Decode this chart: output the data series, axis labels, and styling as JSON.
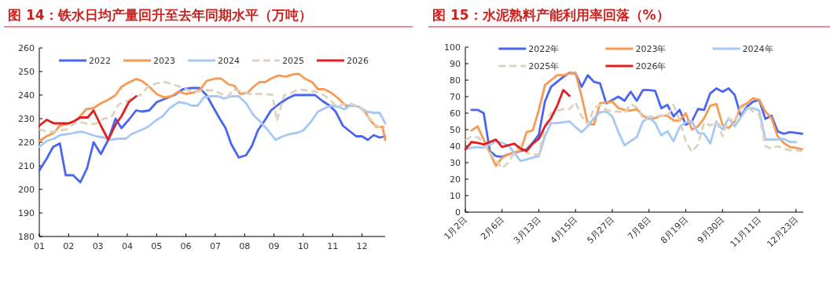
{
  "chart_data": [
    {
      "type": "line",
      "title": "图 14：铁水日均产量回升至去年同期水平（万吨）",
      "xlim": [
        1,
        12.79
      ],
      "ylim": [
        180,
        260
      ],
      "xticks": [
        {
          "value": 1,
          "label": "01"
        },
        {
          "value": 2,
          "label": "02"
        },
        {
          "value": 3,
          "label": "03"
        },
        {
          "value": 4,
          "label": "04"
        },
        {
          "value": 5,
          "label": "05"
        },
        {
          "value": 6,
          "label": "06"
        },
        {
          "value": 7,
          "label": "07"
        },
        {
          "value": 8,
          "label": "08"
        },
        {
          "value": 9,
          "label": "09"
        },
        {
          "value": 10,
          "label": "10"
        },
        {
          "value": 11,
          "label": "11"
        },
        {
          "value": 12,
          "label": "12"
        }
      ],
      "yticks": [
        180,
        190,
        200,
        210,
        220,
        230,
        240,
        250,
        260
      ],
      "grid": false,
      "legend": "top",
      "marker": "none",
      "series": [
        {
          "name": "2022",
          "color": "#4a66f0",
          "x": [
            1.0,
            1.25,
            1.47,
            1.7,
            1.9,
            2.15,
            2.4,
            2.63,
            2.85,
            3.1,
            3.35,
            3.6,
            3.8,
            4.05,
            4.3,
            4.5,
            4.75,
            5.0,
            5.3,
            5.6,
            5.9,
            6.2,
            6.45,
            6.7,
            6.9,
            7.15,
            7.35,
            7.55,
            7.8,
            8.05,
            8.25,
            8.45,
            8.7,
            8.9,
            9.15,
            9.45,
            9.7,
            9.95,
            10.2,
            10.4,
            10.65,
            10.9,
            11.1,
            11.35,
            11.55,
            11.8,
            12.0,
            12.2,
            12.4,
            12.6,
            12.79
          ],
          "values": [
            208,
            213,
            218,
            219.5,
            206,
            206,
            203,
            209,
            220,
            215,
            221,
            230,
            226,
            229.5,
            233.5,
            233,
            233.5,
            237,
            238.5,
            240,
            242.5,
            243,
            243,
            240,
            235.5,
            230,
            226,
            219,
            213.5,
            214.5,
            218.5,
            225,
            229.5,
            233.5,
            236,
            238.5,
            240,
            240,
            240,
            240,
            237.5,
            235.5,
            233,
            227,
            225,
            222.5,
            222.5,
            221,
            223,
            222,
            222.5
          ]
        },
        {
          "name": "2023",
          "color": "#f79a55",
          "x": [
            1.0,
            1.25,
            1.5,
            1.7,
            1.9,
            2.15,
            2.35,
            2.6,
            2.85,
            3.1,
            3.35,
            3.6,
            3.8,
            4.0,
            4.3,
            4.5,
            4.75,
            5.0,
            5.25,
            5.5,
            5.75,
            6.0,
            6.25,
            6.5,
            6.7,
            7.0,
            7.2,
            7.45,
            7.65,
            7.85,
            8.1,
            8.3,
            8.5,
            8.7,
            8.9,
            9.15,
            9.4,
            9.65,
            9.85,
            10.05,
            10.3,
            10.5,
            10.7,
            10.95,
            11.2,
            11.45,
            11.7,
            11.9,
            12.1,
            12.3,
            12.5,
            12.7,
            12.79
          ],
          "values": [
            220.5,
            222.5,
            224,
            227,
            227.5,
            228.5,
            230.5,
            234,
            234.5,
            236.5,
            238,
            240,
            243.5,
            245,
            246.8,
            246,
            243.5,
            240.5,
            239,
            239.5,
            241.5,
            240.5,
            241,
            242.5,
            246,
            247,
            247,
            244.5,
            244,
            240.5,
            241,
            243.5,
            245.5,
            245.5,
            247,
            248.3,
            247.8,
            248.8,
            249,
            247,
            245.5,
            242.5,
            242.5,
            241,
            238.5,
            235.5,
            235.5,
            235,
            233,
            229,
            226.5,
            226.5,
            221
          ]
        },
        {
          "name": "2024",
          "color": "#a6c8f5",
          "x": [
            1.0,
            1.25,
            1.5,
            1.7,
            2.0,
            2.2,
            2.45,
            2.7,
            2.95,
            3.2,
            3.4,
            3.7,
            3.95,
            4.15,
            4.45,
            4.7,
            4.95,
            5.2,
            5.45,
            5.75,
            6.0,
            6.2,
            6.4,
            6.6,
            6.85,
            7.1,
            7.3,
            7.55,
            7.8,
            8.05,
            8.3,
            8.55,
            8.8,
            9.05,
            9.3,
            9.55,
            9.8,
            10.0,
            10.25,
            10.5,
            10.75,
            10.95,
            11.2,
            11.4,
            11.65,
            11.9,
            12.15,
            12.4,
            12.6,
            12.75,
            12.79
          ],
          "values": [
            218,
            220.5,
            221.5,
            223,
            223.5,
            224,
            224.5,
            223.5,
            222.5,
            222,
            221,
            221.5,
            221.5,
            223.5,
            225,
            226.5,
            229,
            231,
            234.5,
            237,
            236.5,
            235.5,
            235.5,
            239,
            239.5,
            239.5,
            238.5,
            239.5,
            239.5,
            236.5,
            231.5,
            228.5,
            225,
            221,
            222.5,
            223.5,
            224,
            225,
            228.5,
            233,
            234.5,
            235.5,
            235,
            234,
            236,
            235,
            233,
            232.5,
            232.5,
            229,
            228
          ]
        },
        {
          "name": "2025",
          "color": "#ddd3bf",
          "line_style": "dashed",
          "x": [
            1.0,
            1.25,
            1.5,
            1.7,
            1.95,
            2.2,
            2.45,
            2.7,
            2.95,
            3.2,
            3.45,
            3.7,
            4.0,
            4.2,
            4.45,
            4.7,
            5.0,
            5.3,
            5.55,
            5.8,
            6.1,
            6.4,
            6.7,
            6.95,
            7.2,
            7.45,
            7.6,
            7.9,
            8.15,
            8.45,
            8.7,
            8.95,
            9.1,
            9.35,
            9.6,
            9.85,
            10.1,
            10.4,
            10.7,
            10.9,
            11.15,
            11.45,
            11.7,
            11.95,
            12.2,
            12.45,
            12.65,
            12.79
          ],
          "values": [
            225.5,
            224.5,
            224.5,
            225,
            225.5,
            228,
            228.5,
            227.5,
            228,
            230,
            230.5,
            236,
            237.5,
            239,
            240,
            243.5,
            245,
            245.5,
            244.5,
            243.5,
            242,
            241.5,
            242,
            242,
            240.5,
            239.5,
            242.5,
            241.5,
            240.5,
            240.5,
            240.5,
            240,
            229,
            240,
            241,
            242.5,
            242,
            241.5,
            240,
            238,
            235,
            236.5,
            236,
            234.5,
            231,
            227.5,
            226,
            226.5
          ]
        },
        {
          "name": "2026",
          "color": "#e02020",
          "x": [
            1.0,
            1.25,
            1.5,
            1.75,
            2.0,
            2.2,
            2.4,
            2.65,
            2.85,
            3.1,
            3.35,
            3.6,
            3.8,
            4.05,
            4.3
          ],
          "values": [
            227,
            229.5,
            228,
            228,
            228,
            229,
            230.5,
            230.5,
            233.5,
            227,
            221,
            227.5,
            231,
            237,
            239.5
          ]
        }
      ]
    },
    {
      "type": "line",
      "title": "图 15：水泥熟料产能利用率回落（%）",
      "ylim": [
        0,
        100
      ],
      "categories": [
        "1月2日",
        null,
        null,
        null,
        null,
        null,
        "2月6日",
        null,
        null,
        null,
        null,
        null,
        "3月13日",
        null,
        null,
        null,
        null,
        null,
        "4月15日",
        null,
        null,
        null,
        null,
        null,
        "5月27日",
        null,
        null,
        null,
        null,
        null,
        "7月8日",
        null,
        null,
        null,
        null,
        null,
        "8月19日",
        null,
        null,
        null,
        null,
        null,
        "9月30日",
        null,
        null,
        null,
        null,
        null,
        "11月11日",
        null,
        null,
        null,
        null,
        null,
        "12月23日",
        null
      ],
      "yticks": [
        0,
        10,
        20,
        30,
        40,
        50,
        60,
        70,
        80,
        90,
        100
      ],
      "grid": false,
      "legend": "top",
      "marker": "none",
      "series": [
        {
          "name": "2022年",
          "color": "#4a66f0",
          "values": [
            null,
            62,
            62,
            60,
            37,
            34,
            33.5,
            35,
            36,
            37,
            38,
            42,
            47,
            67,
            76,
            79,
            82,
            84.5,
            84,
            76,
            83,
            79,
            78,
            66,
            68,
            70,
            67.5,
            73,
            67.5,
            74,
            74,
            73.5,
            63,
            65,
            58,
            62,
            53,
            55,
            62.5,
            62,
            72,
            75,
            73,
            75,
            71,
            58,
            64,
            67,
            68,
            56.5,
            58.5,
            49,
            47.5,
            48.5,
            48,
            47.5
          ]
        },
        {
          "name": "2023年",
          "color": "#f79a55",
          "values": [
            null,
            49.5,
            52,
            44,
            36,
            28,
            33,
            35,
            36,
            37,
            48.5,
            49.5,
            62,
            77,
            80,
            83,
            83,
            84,
            84.5,
            70,
            53.5,
            53,
            66,
            66.5,
            67,
            63,
            62,
            61.5,
            62.5,
            58.5,
            56.5,
            57,
            58.5,
            58.5,
            55.5,
            55.5,
            60,
            50,
            52,
            57,
            64.5,
            65.5,
            53,
            51,
            55,
            64,
            66,
            69,
            68,
            61,
            57,
            46,
            42,
            39.5,
            39,
            38
          ]
        },
        {
          "name": "2024年",
          "color": "#a6c8f5",
          "values": [
            38,
            39,
            39.5,
            39,
            41,
            43,
            42,
            40.5,
            36,
            31,
            32,
            33,
            34,
            46,
            54,
            54,
            54.5,
            55,
            51.5,
            48.5,
            52,
            57,
            60.5,
            61,
            58,
            48.5,
            40.5,
            43,
            45.5,
            55,
            57.5,
            54,
            46.5,
            49,
            43,
            51.5,
            54.5,
            55,
            48,
            47.5,
            41.5,
            55,
            50,
            57,
            52,
            57.5,
            63,
            63,
            61.5,
            44,
            44,
            44,
            44.5,
            42.5,
            42.5,
            null
          ]
        },
        {
          "name": "2025年",
          "color": "#ddd3bf",
          "line_style": "dashed",
          "values": [
            43.5,
            46,
            45.5,
            42,
            36,
            31.5,
            26.5,
            30,
            36,
            40,
            36,
            35,
            35,
            52,
            60,
            61.5,
            62.5,
            62.5,
            66.5,
            58,
            53,
            63,
            65,
            62,
            61,
            61,
            60,
            65.5,
            63.5,
            57,
            58,
            58,
            58.5,
            58,
            65,
            56,
            43,
            36.5,
            41,
            54.5,
            52.5,
            55,
            46,
            57,
            54.5,
            63,
            64,
            61,
            59,
            40,
            38.5,
            40,
            38.5,
            37.5,
            37.5,
            37
          ]
        },
        {
          "name": "2026年",
          "color": "#e02020",
          "values": [
            38,
            42.5,
            42,
            41,
            42.5,
            44,
            39.5,
            40.5,
            41.5,
            38.5,
            37,
            41.5,
            44.5,
            52,
            57,
            64.5,
            74,
            70.5,
            null,
            null,
            null,
            null,
            null,
            null,
            null,
            null,
            null,
            null,
            null,
            null,
            null,
            null,
            null,
            null,
            null,
            null,
            null,
            null,
            null,
            null,
            null,
            null,
            null,
            null,
            null,
            null,
            null,
            null,
            null,
            null,
            null,
            null,
            null,
            null,
            null,
            null
          ]
        }
      ]
    }
  ]
}
